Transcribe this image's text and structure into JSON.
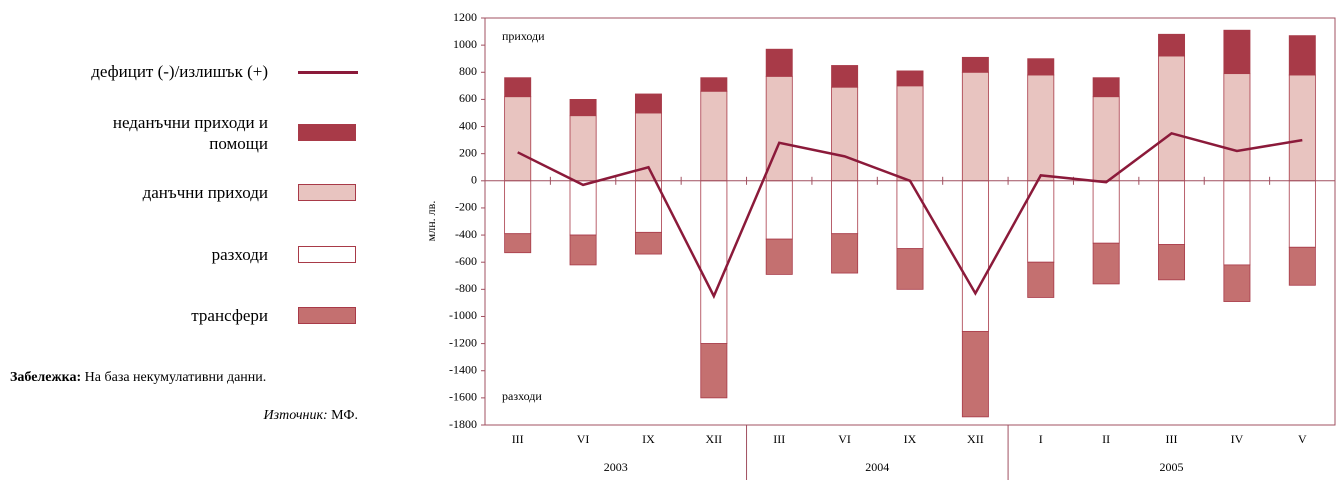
{
  "chart_data": {
    "type": "bar",
    "y_label": "млн. лв.",
    "annotations": [
      "приходи",
      "разходи"
    ],
    "categories": [
      "III",
      "VI",
      "IX",
      "XII",
      "III",
      "VI",
      "IX",
      "XII",
      "I",
      "II",
      "III",
      "IV",
      "V"
    ],
    "year_labels": [
      "2003",
      "2004",
      "2005"
    ],
    "series": [
      {
        "name": "дефицит (-)/излишък (+)",
        "type": "line",
        "color": "#8b1a3a",
        "values": [
          210,
          -30,
          100,
          -850,
          280,
          180,
          0,
          -830,
          40,
          -10,
          350,
          220,
          300
        ]
      },
      {
        "name": "неданъчни приходи и помощи",
        "type": "bar",
        "color": "#a83a48",
        "values": [
          140,
          120,
          140,
          100,
          200,
          160,
          110,
          110,
          120,
          140,
          160,
          320,
          290
        ]
      },
      {
        "name": "данъчни приходи",
        "type": "bar",
        "color": "#e8c4c0",
        "values": [
          620,
          480,
          500,
          660,
          770,
          690,
          700,
          800,
          780,
          620,
          920,
          790,
          780
        ]
      },
      {
        "name": "разходи",
        "type": "bar",
        "color": "#ffffff",
        "values": [
          -390,
          -400,
          -380,
          -1200,
          -430,
          -390,
          -500,
          -1110,
          -600,
          -460,
          -470,
          -620,
          -490
        ]
      },
      {
        "name": "трансфери",
        "type": "bar",
        "color": "#c47070",
        "values": [
          -140,
          -220,
          -160,
          -400,
          -260,
          -290,
          -300,
          -630,
          -260,
          -300,
          -260,
          -270,
          -280
        ]
      }
    ],
    "ylim": [
      -1800,
      1200
    ],
    "yticks": [
      -1800,
      -1600,
      -1400,
      -1200,
      -1000,
      -800,
      -600,
      -400,
      -200,
      0,
      200,
      400,
      600,
      800,
      1000,
      1200
    ],
    "note_label": "Забележка:",
    "note": "На база некумулативни данни.",
    "source_label": "Източник:",
    "source": "МФ."
  }
}
